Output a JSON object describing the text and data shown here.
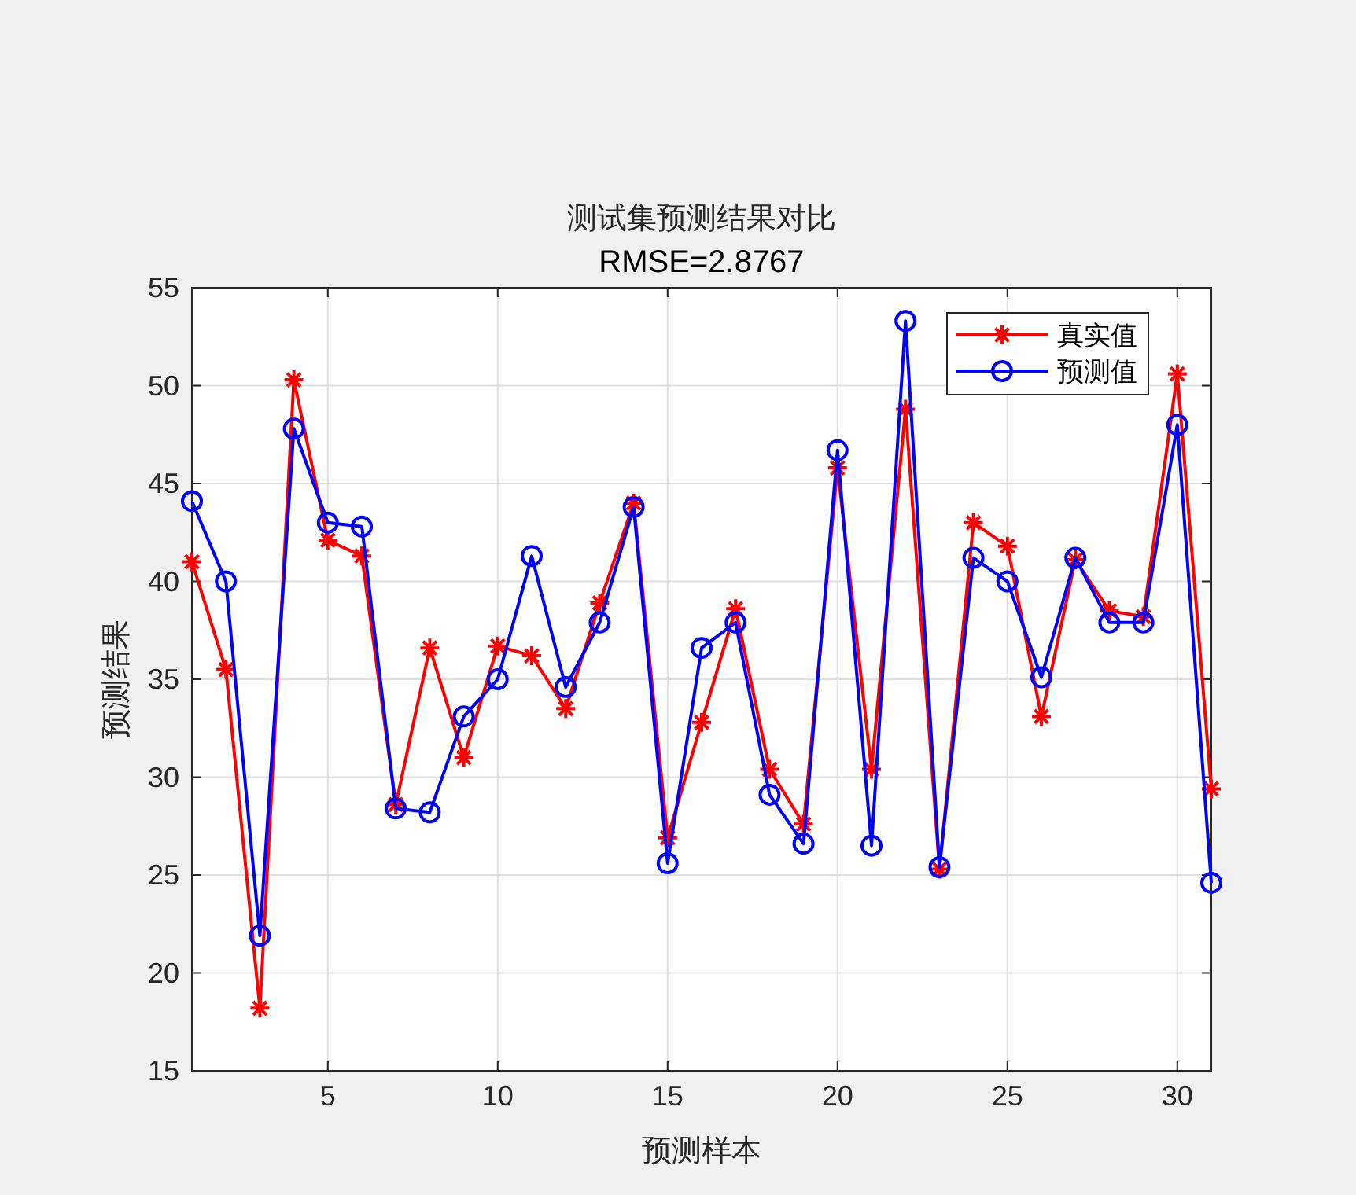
{
  "chart_data": {
    "type": "line",
    "title": "测试集预测结果对比",
    "subtitle": "RMSE=2.8767",
    "xlabel": "预测样本",
    "ylabel": "预测结果",
    "x": [
      1,
      2,
      3,
      4,
      5,
      6,
      7,
      8,
      9,
      10,
      11,
      12,
      13,
      14,
      15,
      16,
      17,
      18,
      19,
      20,
      21,
      22,
      23,
      24,
      25,
      26,
      27,
      28,
      29,
      30,
      31
    ],
    "series": [
      {
        "name": "真实值",
        "color": "#ff0000",
        "marker": "cross",
        "values": [
          41.0,
          35.5,
          18.2,
          50.3,
          42.1,
          41.3,
          28.6,
          36.6,
          31.0,
          36.7,
          36.2,
          33.5,
          38.9,
          44.0,
          26.9,
          32.8,
          38.6,
          30.4,
          27.6,
          45.8,
          30.4,
          48.8,
          25.3,
          43.0,
          41.8,
          33.1,
          41.1,
          38.5,
          38.2,
          50.6,
          29.4
        ]
      },
      {
        "name": "预测值",
        "color": "#0000ff",
        "marker": "circle",
        "values": [
          44.1,
          40.0,
          21.9,
          47.8,
          43.0,
          42.8,
          28.4,
          28.2,
          33.1,
          35.0,
          41.3,
          34.6,
          37.9,
          43.8,
          25.6,
          36.6,
          37.9,
          29.1,
          26.6,
          46.7,
          26.5,
          53.3,
          25.4,
          41.2,
          40.0,
          35.1,
          41.2,
          37.9,
          37.9,
          48.0,
          24.6
        ]
      }
    ],
    "xlim": [
      1,
      31
    ],
    "ylim": [
      15,
      55
    ],
    "xticks": [
      5,
      10,
      15,
      20,
      25,
      30
    ],
    "yticks": [
      15,
      20,
      25,
      30,
      35,
      40,
      45,
      50,
      55
    ],
    "grid": true,
    "legend": "top right",
    "line_style": "solid"
  }
}
